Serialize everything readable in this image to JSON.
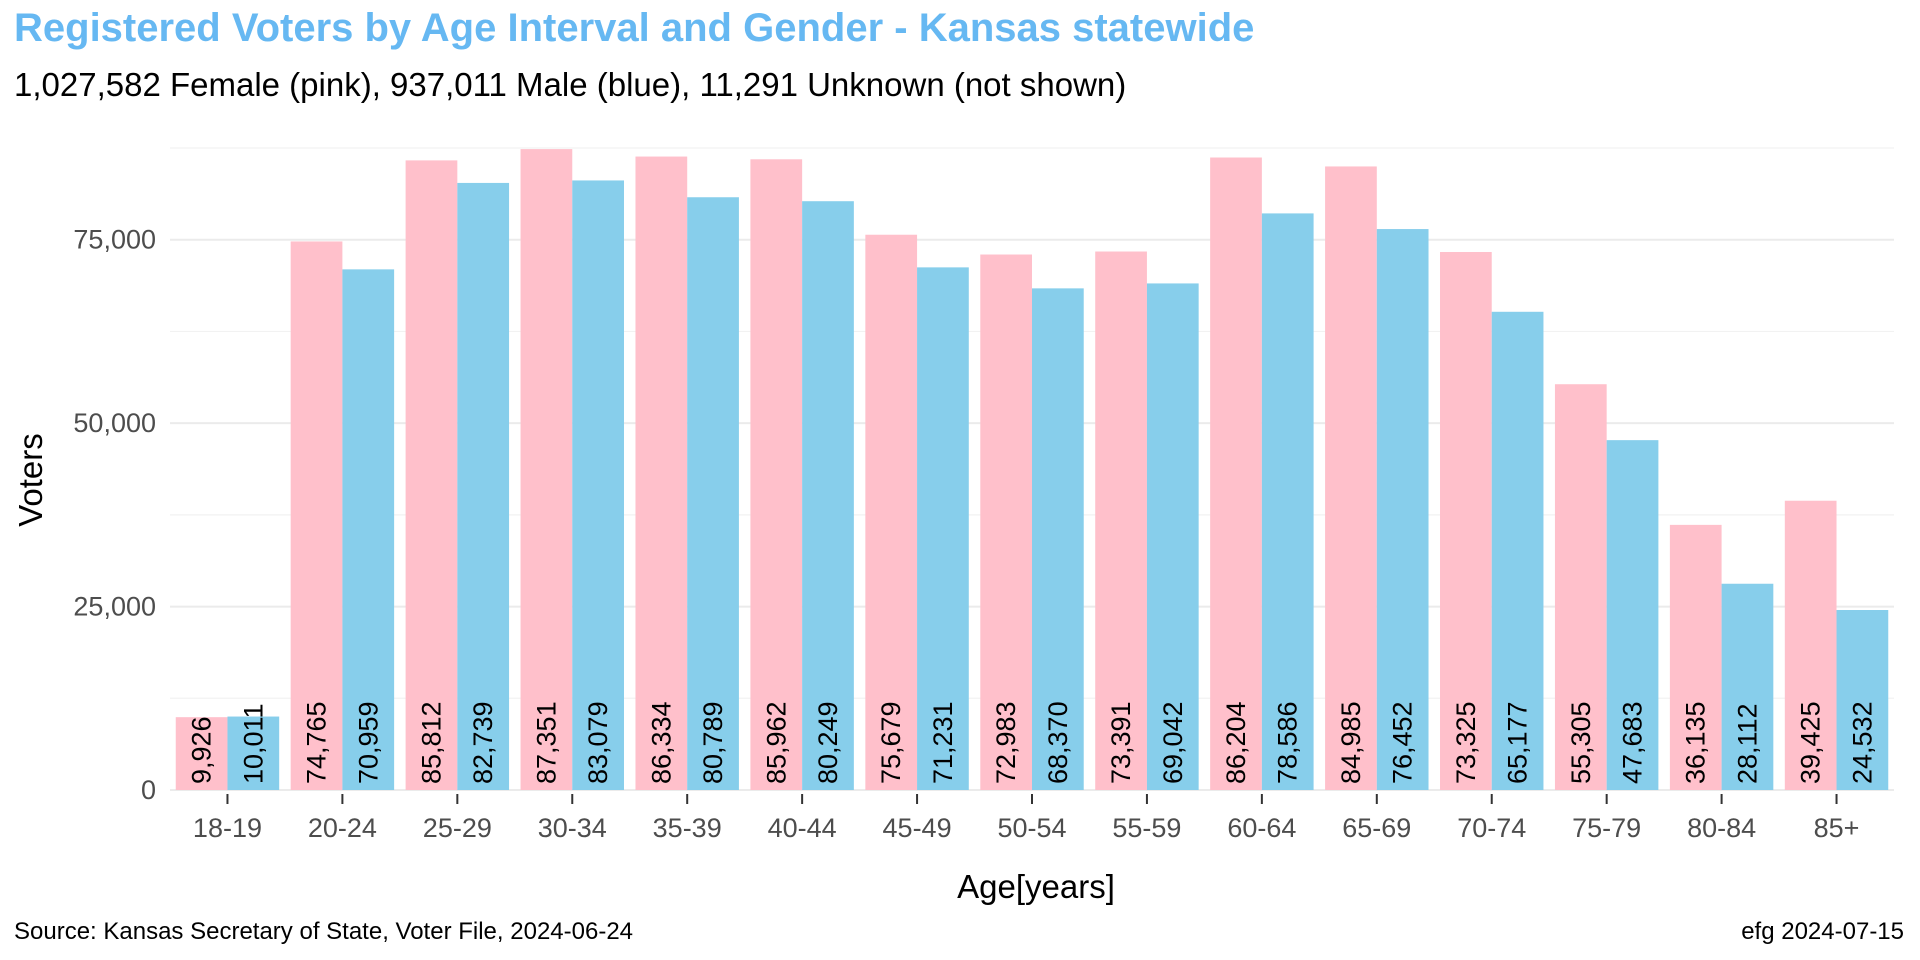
{
  "colors": {
    "title": "#66b8f2",
    "female": "#ffc0cb",
    "male": "#87ceeb",
    "grid": "#ebebeb"
  },
  "footer": {
    "source": "Source: Kansas Secretary of State, Voter File, 2024-06-24",
    "credit": "efg 2024-07-15"
  },
  "chart_data": {
    "type": "bar",
    "title": "Registered Voters by Age Interval and Gender - Kansas statewide",
    "subtitle": "1,027,582 Female (pink),  937,011 Male (blue),  11,291 Unknown (not shown)",
    "xlabel": "Age[years]",
    "ylabel": "Voters",
    "ylim": [
      0,
      87500
    ],
    "yticks": [
      0,
      25000,
      50000,
      75000
    ],
    "ytick_labels": [
      "0",
      "25,000",
      "50,000",
      "75,000"
    ],
    "grid": true,
    "legend": "none",
    "categories": [
      "18-19",
      "20-24",
      "25-29",
      "30-34",
      "35-39",
      "40-44",
      "45-49",
      "50-54",
      "55-59",
      "60-64",
      "65-69",
      "70-74",
      "75-79",
      "80-84",
      "85+"
    ],
    "series": [
      {
        "color": "#ffc0cb",
        "values": [
          9926,
          74765,
          85812,
          87351,
          86334,
          85962,
          75679,
          72983,
          73391,
          86204,
          84985,
          73325,
          55305,
          36135,
          39425
        ],
        "labels": [
          "9,926",
          "74,765",
          "85,812",
          "87,351",
          "86,334",
          "85,962",
          "75,679",
          "72,983",
          "73,391",
          "86,204",
          "84,985",
          "73,325",
          "55,305",
          "36,135",
          "39,425"
        ]
      },
      {
        "color": "#87ceeb",
        "values": [
          10011,
          70959,
          82739,
          83079,
          80789,
          80249,
          71231,
          68370,
          69042,
          78586,
          76452,
          65177,
          47683,
          28112,
          24532
        ],
        "labels": [
          "10,011",
          "70,959",
          "82,739",
          "83,079",
          "80,789",
          "80,249",
          "71,231",
          "68,370",
          "69,042",
          "78,586",
          "76,452",
          "65,177",
          "47,683",
          "28,112",
          "24,532"
        ]
      }
    ]
  }
}
